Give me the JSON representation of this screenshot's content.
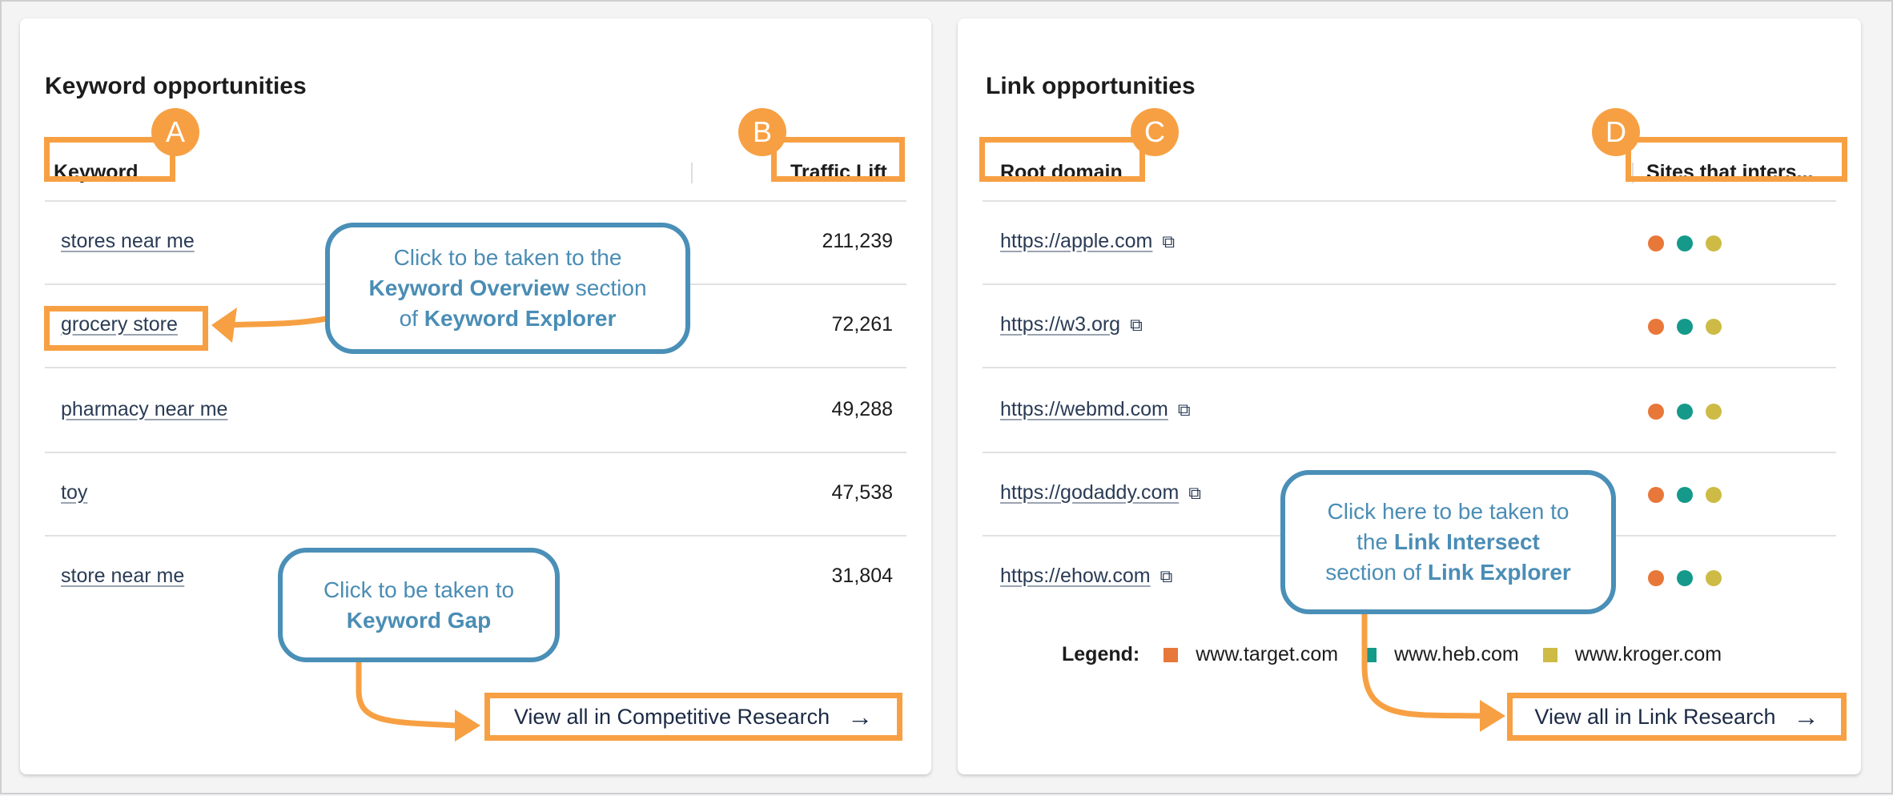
{
  "keyword_card": {
    "title": "Keyword opportunities",
    "col_keyword": "Keyword",
    "col_traffic": "Traffic Lift",
    "rows": [
      {
        "keyword": "stores near me",
        "traffic": "211,239"
      },
      {
        "keyword": "grocery store",
        "traffic": "72,261"
      },
      {
        "keyword": "pharmacy near me",
        "traffic": "49,288"
      },
      {
        "keyword": "toy",
        "traffic": "47,538"
      },
      {
        "keyword": "store near me",
        "traffic": "31,804"
      }
    ],
    "view_all": "View all in Competitive Research"
  },
  "link_card": {
    "title": "Link opportunities",
    "col_domain": "Root domain",
    "col_sites": "Sites that inters...",
    "rows": [
      {
        "domain": "https://apple.com"
      },
      {
        "domain": "https://w3.org"
      },
      {
        "domain": "https://webmd.com"
      },
      {
        "domain": "https://godaddy.com"
      },
      {
        "domain": "https://ehow.com"
      }
    ],
    "legend_label": "Legend:",
    "legend": [
      {
        "name": "www.target.com",
        "color": "#e8773a"
      },
      {
        "name": "www.heb.com",
        "color": "#14998a"
      },
      {
        "name": "www.kroger.com",
        "color": "#cdbb45"
      }
    ],
    "view_all": "View all in Link Research"
  },
  "badges": [
    "A",
    "B",
    "C",
    "D"
  ],
  "callouts": {
    "c1": {
      "l1": "Click to be taken to the",
      "b1": "Keyword Overview",
      "t1": " section",
      "t2": "of ",
      "b2": "Keyword Explorer"
    },
    "c2": {
      "l1": "Click to be taken to",
      "b1": "Keyword Gap"
    },
    "c3": {
      "l1": "Click here to be taken to",
      "t1": "the ",
      "b1": "Link Intersect",
      "t2": "section of ",
      "b2": "Link Explorer"
    }
  },
  "icons": {
    "external": "external-link-icon",
    "arrow": "arrow-right-icon"
  },
  "colors": {
    "annotation_orange": "#f7a043",
    "callout_blue": "#4a8fb7"
  }
}
